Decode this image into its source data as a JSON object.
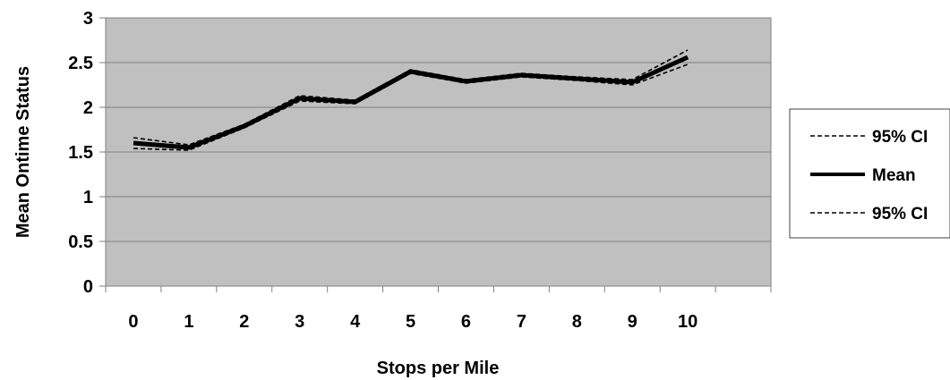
{
  "chart_data": {
    "type": "line",
    "title": "",
    "xlabel": "Stops per Mile",
    "ylabel": "Mean Ontime Status",
    "x": [
      0,
      1,
      2,
      3,
      4,
      5,
      6,
      7,
      8,
      9,
      10
    ],
    "x_ticks": [
      "0",
      "1",
      "2",
      "3",
      "4",
      "5",
      "6",
      "7",
      "8",
      "9",
      "10"
    ],
    "xlim": [
      -0.5,
      11.5
    ],
    "y_ticks": [
      "0",
      "0.5",
      "1",
      "1.5",
      "2",
      "2.5",
      "3"
    ],
    "ylim": [
      0,
      3
    ],
    "grid": true,
    "plot_background": "#c0c0c0",
    "legend_position": "right",
    "series": [
      {
        "name": "95% CI",
        "style": "dashed",
        "color": "#000000",
        "values": [
          1.66,
          1.58,
          1.81,
          2.13,
          2.08,
          2.42,
          2.31,
          2.38,
          2.34,
          2.31,
          2.64
        ]
      },
      {
        "name": "Mean",
        "style": "solid-thick",
        "color": "#000000",
        "values": [
          1.6,
          1.55,
          1.79,
          2.1,
          2.06,
          2.4,
          2.29,
          2.36,
          2.32,
          2.28,
          2.56
        ]
      },
      {
        "name": "95% CI",
        "style": "dashed",
        "color": "#000000",
        "values": [
          1.54,
          1.52,
          1.77,
          2.07,
          2.04,
          2.38,
          2.27,
          2.34,
          2.3,
          2.25,
          2.48
        ]
      }
    ]
  }
}
